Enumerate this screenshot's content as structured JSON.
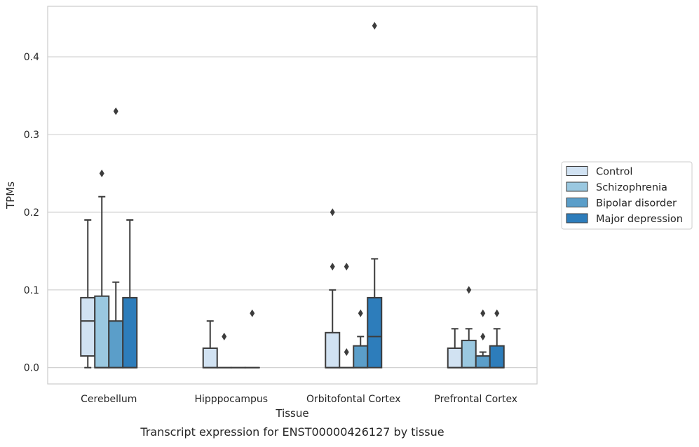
{
  "caption": "Transcript expression for ENST00000426127 by tissue",
  "chart_data": {
    "type": "box",
    "title": "",
    "xlabel": "Tissue",
    "ylabel": "TPMs",
    "ylim": [
      -0.021,
      0.465
    ],
    "yticks": [
      0.0,
      0.1,
      0.2,
      0.3,
      0.4
    ],
    "ytick_labels": [
      "0.0",
      "0.1",
      "0.2",
      "0.3",
      "0.4"
    ],
    "grid": "horizontal",
    "legend_position": "right",
    "categories": [
      "Cerebellum",
      "Hipppocampus",
      "Orbitofontal Cortex",
      "Prefrontal Cortex"
    ],
    "series": [
      {
        "name": "Control",
        "color": "#d1e2f2",
        "boxes": [
          {
            "whislo": 0.0,
            "q1": 0.015,
            "med": 0.06,
            "q3": 0.09,
            "whishi": 0.19,
            "fliers": []
          },
          {
            "whislo": 0.0,
            "q1": 0.0,
            "med": 0.0,
            "q3": 0.025,
            "whishi": 0.06,
            "fliers": []
          },
          {
            "whislo": 0.0,
            "q1": 0.0,
            "med": 0.0,
            "q3": 0.045,
            "whishi": 0.1,
            "fliers": [
              0.2,
              0.13
            ]
          },
          {
            "whislo": 0.0,
            "q1": 0.0,
            "med": 0.0,
            "q3": 0.025,
            "whishi": 0.05,
            "fliers": []
          }
        ]
      },
      {
        "name": "Schizophrenia",
        "color": "#9ac8e0",
        "boxes": [
          {
            "whislo": 0.0,
            "q1": 0.0,
            "med": 0.0,
            "q3": 0.092,
            "whishi": 0.22,
            "fliers": [
              0.25
            ]
          },
          {
            "whislo": 0.0,
            "q1": 0.0,
            "med": 0.0,
            "q3": 0.0,
            "whishi": 0.0,
            "fliers": [
              0.04
            ]
          },
          {
            "whislo": 0.0,
            "q1": 0.0,
            "med": 0.0,
            "q3": 0.0,
            "whishi": 0.0,
            "fliers": [
              0.02,
              0.13
            ]
          },
          {
            "whislo": 0.0,
            "q1": 0.0,
            "med": 0.0,
            "q3": 0.035,
            "whishi": 0.05,
            "fliers": [
              0.1
            ]
          }
        ]
      },
      {
        "name": "Bipolar disorder",
        "color": "#5b9ec9",
        "boxes": [
          {
            "whislo": 0.0,
            "q1": 0.0,
            "med": 0.0,
            "q3": 0.06,
            "whishi": 0.11,
            "fliers": [
              0.33
            ]
          },
          {
            "whislo": 0.0,
            "q1": 0.0,
            "med": 0.0,
            "q3": 0.0,
            "whishi": 0.0,
            "fliers": []
          },
          {
            "whislo": 0.0,
            "q1": 0.0,
            "med": 0.0,
            "q3": 0.028,
            "whishi": 0.04,
            "fliers": [
              0.07
            ]
          },
          {
            "whislo": 0.0,
            "q1": 0.0,
            "med": 0.0,
            "q3": 0.015,
            "whishi": 0.02,
            "fliers": [
              0.07,
              0.04
            ]
          }
        ]
      },
      {
        "name": "Major depression",
        "color": "#2d7dbb",
        "boxes": [
          {
            "whislo": 0.0,
            "q1": 0.0,
            "med": 0.0,
            "q3": 0.09,
            "whishi": 0.19,
            "fliers": []
          },
          {
            "whislo": 0.0,
            "q1": 0.0,
            "med": 0.0,
            "q3": 0.0,
            "whishi": 0.0,
            "fliers": [
              0.07
            ]
          },
          {
            "whislo": 0.0,
            "q1": 0.0,
            "med": 0.04,
            "q3": 0.09,
            "whishi": 0.14,
            "fliers": [
              0.44
            ]
          },
          {
            "whislo": 0.0,
            "q1": 0.0,
            "med": 0.0,
            "q3": 0.028,
            "whishi": 0.05,
            "fliers": [
              0.07
            ]
          }
        ]
      }
    ]
  }
}
